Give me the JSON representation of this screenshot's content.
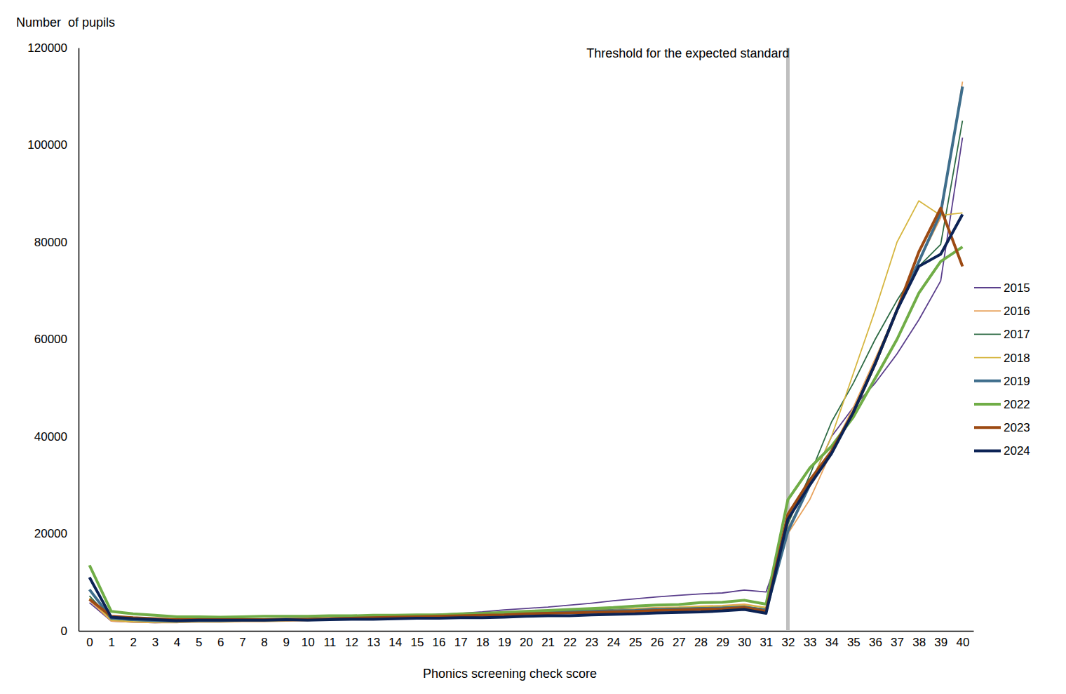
{
  "chart_data": {
    "type": "line",
    "y_label": "Number  of pupils",
    "x_label": "Phonics screening check score",
    "annotations": [
      {
        "text": "Threshold for the expected standard",
        "x": 32
      }
    ],
    "x": [
      0,
      1,
      2,
      3,
      4,
      5,
      6,
      7,
      8,
      9,
      10,
      11,
      12,
      13,
      14,
      15,
      16,
      17,
      18,
      19,
      20,
      21,
      22,
      23,
      24,
      25,
      26,
      27,
      28,
      29,
      30,
      31,
      32,
      33,
      34,
      35,
      36,
      37,
      38,
      39,
      40
    ],
    "xlim": [
      -0.5,
      40.5
    ],
    "xticks": [
      0,
      1,
      2,
      3,
      4,
      5,
      6,
      7,
      8,
      9,
      10,
      11,
      12,
      13,
      14,
      15,
      16,
      17,
      18,
      19,
      20,
      21,
      22,
      23,
      24,
      25,
      26,
      27,
      28,
      29,
      30,
      31,
      32,
      33,
      34,
      35,
      36,
      37,
      38,
      39,
      40
    ],
    "ylim": [
      0,
      120000
    ],
    "yticks": [
      0,
      20000,
      40000,
      60000,
      80000,
      100000,
      120000
    ],
    "grid": false,
    "legend": "right",
    "series": [
      {
        "name": "2015",
        "color": "#5b3f8c",
        "values": [
          5800,
          2000,
          1800,
          1700,
          1800,
          1900,
          1900,
          2000,
          2000,
          2100,
          2200,
          2400,
          2600,
          2800,
          3000,
          3200,
          3400,
          3600,
          3900,
          4300,
          4600,
          4900,
          5300,
          5700,
          6200,
          6600,
          7000,
          7300,
          7600,
          7800,
          8400,
          8000,
          21000,
          30000,
          40000,
          46000,
          51000,
          57000,
          64000,
          72000,
          101500
        ]
      },
      {
        "name": "2016",
        "color": "#e8a35e",
        "values": [
          6300,
          2000,
          1800,
          1700,
          1700,
          1800,
          1800,
          1900,
          1900,
          2000,
          2100,
          2300,
          2500,
          2600,
          2800,
          3000,
          3100,
          3300,
          3400,
          3600,
          3800,
          3900,
          4100,
          4300,
          4400,
          4600,
          4800,
          4900,
          5100,
          5200,
          5500,
          4800,
          20000,
          27000,
          37000,
          46000,
          56000,
          66000,
          76000,
          85000,
          113000
        ]
      },
      {
        "name": "2017",
        "color": "#2e6b45",
        "values": [
          7200,
          2400,
          2100,
          2000,
          1900,
          2000,
          2000,
          2100,
          2100,
          2200,
          2300,
          2500,
          2600,
          2800,
          2900,
          3100,
          3200,
          3400,
          3500,
          3700,
          3900,
          4000,
          4100,
          4200,
          4400,
          4500,
          4600,
          4700,
          4800,
          4900,
          5000,
          4500,
          22000,
          32000,
          43000,
          51000,
          60000,
          68000,
          75000,
          79500,
          105000
        ]
      },
      {
        "name": "2018",
        "color": "#d6b640",
        "values": [
          6700,
          2200,
          1900,
          1800,
          1800,
          1900,
          1900,
          2000,
          2000,
          2100,
          2200,
          2300,
          2500,
          2600,
          2800,
          2900,
          3100,
          3200,
          3400,
          3600,
          3700,
          3900,
          4000,
          4200,
          4300,
          4500,
          4600,
          4800,
          5000,
          5100,
          5300,
          4800,
          21000,
          30000,
          40000,
          53000,
          66000,
          80000,
          88500,
          85500,
          86000
        ]
      },
      {
        "name": "2019",
        "color": "#3f6e8c",
        "values": [
          8500,
          2600,
          2300,
          2100,
          2000,
          2100,
          2100,
          2200,
          2200,
          2300,
          2400,
          2500,
          2700,
          2800,
          2900,
          3000,
          3200,
          3300,
          3400,
          3500,
          3700,
          3800,
          3900,
          4000,
          4100,
          4200,
          4400,
          4500,
          4600,
          4700,
          4900,
          4200,
          20500,
          30000,
          37000,
          45000,
          55000,
          66000,
          76000,
          86000,
          112000
        ]
      },
      {
        "name": "2022",
        "color": "#70ad47",
        "values": [
          13500,
          4000,
          3500,
          3200,
          2900,
          2900,
          2800,
          2900,
          3000,
          3000,
          3000,
          3100,
          3100,
          3200,
          3200,
          3300,
          3300,
          3500,
          3600,
          3800,
          4000,
          4200,
          4400,
          4600,
          4800,
          5100,
          5300,
          5400,
          5800,
          5900,
          6300,
          5500,
          27000,
          33500,
          38000,
          44000,
          52000,
          60000,
          69500,
          76000,
          79000
        ]
      },
      {
        "name": "2023",
        "color": "#9c4a13",
        "values": [
          6500,
          3000,
          2700,
          2500,
          2300,
          2300,
          2300,
          2300,
          2300,
          2400,
          2400,
          2500,
          2600,
          2700,
          2800,
          2900,
          3000,
          3100,
          3200,
          3300,
          3500,
          3600,
          3700,
          3800,
          3900,
          4000,
          4200,
          4300,
          4400,
          4500,
          4800,
          4000,
          24000,
          31000,
          37000,
          45000,
          55000,
          66000,
          78000,
          87000,
          75000
        ]
      },
      {
        "name": "2024",
        "color": "#0c2355",
        "values": [
          11000,
          2800,
          2500,
          2300,
          2100,
          2200,
          2200,
          2200,
          2200,
          2300,
          2200,
          2300,
          2400,
          2400,
          2500,
          2600,
          2600,
          2700,
          2700,
          2800,
          3000,
          3100,
          3100,
          3300,
          3400,
          3500,
          3700,
          3800,
          3900,
          4100,
          4400,
          3600,
          23000,
          30000,
          36500,
          45000,
          55000,
          66000,
          75000,
          77500,
          85700
        ]
      }
    ]
  }
}
